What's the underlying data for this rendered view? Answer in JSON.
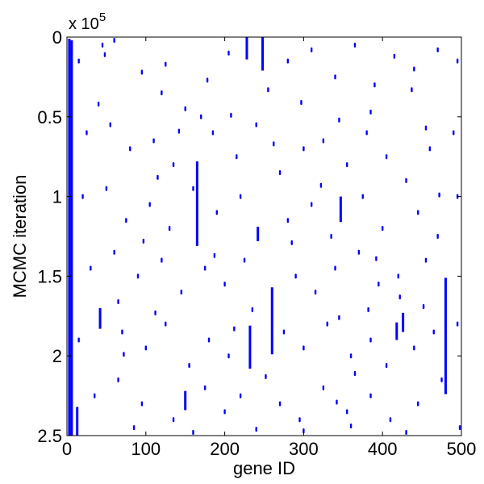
{
  "chart_data": {
    "type": "scatter",
    "title": "",
    "xlabel": "gene ID",
    "ylabel": "MCMC iteration",
    "xlim": [
      0,
      500
    ],
    "ylim": [
      0,
      250000
    ],
    "y_direction": "reversed",
    "y_multiplier_label": "x 10",
    "y_multiplier_exponent": "5",
    "grid": false,
    "legend": "none",
    "x_ticks": [
      {
        "value": 0,
        "label": "0"
      },
      {
        "value": 100,
        "label": "100"
      },
      {
        "value": 200,
        "label": "200"
      },
      {
        "value": 300,
        "label": "300"
      },
      {
        "value": 400,
        "label": "400"
      },
      {
        "value": 500,
        "label": "500"
      }
    ],
    "y_ticks": [
      {
        "value": 0,
        "label": "0"
      },
      {
        "value": 50000,
        "label": "0.5"
      },
      {
        "value": 100000,
        "label": "1"
      },
      {
        "value": 150000,
        "label": "1.5"
      },
      {
        "value": 200000,
        "label": "2"
      },
      {
        "value": 250000,
        "label": "2.5"
      }
    ],
    "colors": {
      "marker": "#0000ff",
      "axes": "#000000",
      "background": "#ffffff"
    },
    "segments": [
      {
        "gene": 3,
        "iter_start": 1000,
        "iter_end": 250000
      },
      {
        "gene": 6,
        "iter_start": 2000,
        "iter_end": 250000
      },
      {
        "gene": 165,
        "iter_start": 78000,
        "iter_end": 131000
      },
      {
        "gene": 260,
        "iter_start": 157000,
        "iter_end": 199000
      },
      {
        "gene": 480,
        "iter_start": 151000,
        "iter_end": 224000
      },
      {
        "gene": 232,
        "iter_start": 181000,
        "iter_end": 208000
      },
      {
        "gene": 248,
        "iter_start": 0,
        "iter_end": 21000
      },
      {
        "gene": 228,
        "iter_start": 0,
        "iter_end": 14000
      },
      {
        "gene": 347,
        "iter_start": 100000,
        "iter_end": 116000
      },
      {
        "gene": 13,
        "iter_start": 232000,
        "iter_end": 250000
      },
      {
        "gene": 150,
        "iter_start": 222000,
        "iter_end": 234000
      },
      {
        "gene": 42,
        "iter_start": 170000,
        "iter_end": 183000
      },
      {
        "gene": 426,
        "iter_start": 173000,
        "iter_end": 185000
      },
      {
        "gene": 418,
        "iter_start": 179000,
        "iter_end": 190000
      },
      {
        "gene": 242,
        "iter_start": 119000,
        "iter_end": 128000
      }
    ],
    "points": [
      [
        15,
        15000
      ],
      [
        45,
        5000
      ],
      [
        60,
        2000
      ],
      [
        95,
        22000
      ],
      [
        120,
        35000
      ],
      [
        150,
        45000
      ],
      [
        170,
        50000
      ],
      [
        205,
        10000
      ],
      [
        280,
        15000
      ],
      [
        310,
        8000
      ],
      [
        340,
        25000
      ],
      [
        365,
        5000
      ],
      [
        390,
        30000
      ],
      [
        415,
        12000
      ],
      [
        440,
        20000
      ],
      [
        470,
        8000
      ],
      [
        495,
        15000
      ],
      [
        25,
        60000
      ],
      [
        55,
        55000
      ],
      [
        80,
        70000
      ],
      [
        110,
        65000
      ],
      [
        135,
        80000
      ],
      [
        185,
        60000
      ],
      [
        215,
        75000
      ],
      [
        240,
        55000
      ],
      [
        270,
        85000
      ],
      [
        300,
        70000
      ],
      [
        325,
        65000
      ],
      [
        355,
        80000
      ],
      [
        380,
        60000
      ],
      [
        405,
        75000
      ],
      [
        430,
        90000
      ],
      [
        460,
        70000
      ],
      [
        490,
        60000
      ],
      [
        20,
        100000
      ],
      [
        50,
        95000
      ],
      [
        75,
        115000
      ],
      [
        105,
        105000
      ],
      [
        130,
        120000
      ],
      [
        160,
        95000
      ],
      [
        190,
        110000
      ],
      [
        220,
        100000
      ],
      [
        280,
        115000
      ],
      [
        310,
        105000
      ],
      [
        335,
        125000
      ],
      [
        375,
        100000
      ],
      [
        400,
        120000
      ],
      [
        445,
        110000
      ],
      [
        470,
        125000
      ],
      [
        495,
        100000
      ],
      [
        30,
        145000
      ],
      [
        60,
        135000
      ],
      [
        90,
        150000
      ],
      [
        120,
        140000
      ],
      [
        145,
        160000
      ],
      [
        175,
        145000
      ],
      [
        200,
        155000
      ],
      [
        225,
        140000
      ],
      [
        290,
        150000
      ],
      [
        315,
        160000
      ],
      [
        340,
        145000
      ],
      [
        370,
        135000
      ],
      [
        395,
        155000
      ],
      [
        420,
        150000
      ],
      [
        455,
        140000
      ],
      [
        15,
        190000
      ],
      [
        70,
        185000
      ],
      [
        100,
        195000
      ],
      [
        125,
        180000
      ],
      [
        180,
        190000
      ],
      [
        205,
        200000
      ],
      [
        275,
        185000
      ],
      [
        300,
        195000
      ],
      [
        330,
        180000
      ],
      [
        360,
        200000
      ],
      [
        385,
        190000
      ],
      [
        440,
        195000
      ],
      [
        465,
        185000
      ],
      [
        495,
        180000
      ],
      [
        35,
        225000
      ],
      [
        65,
        215000
      ],
      [
        95,
        230000
      ],
      [
        135,
        240000
      ],
      [
        175,
        220000
      ],
      [
        200,
        235000
      ],
      [
        220,
        225000
      ],
      [
        270,
        230000
      ],
      [
        295,
        240000
      ],
      [
        325,
        220000
      ],
      [
        355,
        235000
      ],
      [
        385,
        225000
      ],
      [
        410,
        240000
      ],
      [
        445,
        230000
      ],
      [
        475,
        215000
      ],
      [
        498,
        245000
      ],
      [
        85,
        245000
      ],
      [
        160,
        248000
      ],
      [
        240,
        246000
      ],
      [
        300,
        247000
      ],
      [
        360,
        244000
      ],
      [
        430,
        248000
      ],
      [
        40,
        42000
      ],
      [
        125,
        17000
      ],
      [
        255,
        33000
      ],
      [
        385,
        47000
      ],
      [
        115,
        88000
      ],
      [
        345,
        52000
      ],
      [
        455,
        57000
      ],
      [
        285,
        129000
      ],
      [
        65,
        166000
      ],
      [
        235,
        171000
      ],
      [
        345,
        176000
      ],
      [
        155,
        206000
      ],
      [
        365,
        211000
      ],
      [
        405,
        206000
      ],
      [
        48,
        11000
      ],
      [
        178,
        27000
      ],
      [
        262,
        67000
      ],
      [
        322,
        93000
      ],
      [
        392,
        139000
      ],
      [
        422,
        163000
      ],
      [
        452,
        169000
      ],
      [
        72,
        199000
      ],
      [
        112,
        173000
      ],
      [
        212,
        183000
      ],
      [
        252,
        213000
      ],
      [
        342,
        229000
      ],
      [
        382,
        171000
      ],
      [
        472,
        99000
      ],
      [
        142,
        59000
      ],
      [
        208,
        49000
      ],
      [
        97,
        128000
      ],
      [
        187,
        137000
      ],
      [
        297,
        41000
      ],
      [
        437,
        33000
      ]
    ]
  }
}
